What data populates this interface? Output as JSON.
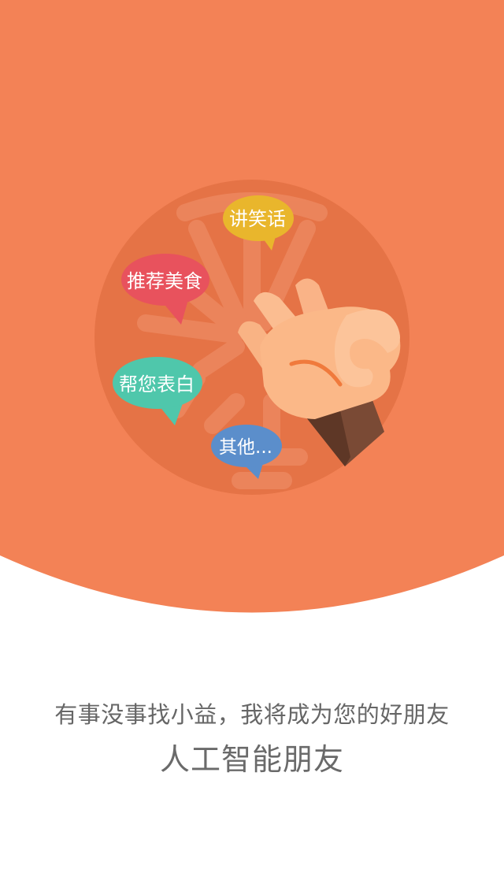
{
  "colors": {
    "accent": "#f38256",
    "circle": "#e57346",
    "bubble_joke": "#e9b62c",
    "bubble_food": "#e8525d",
    "bubble_confess": "#4fc7ab",
    "bubble_other": "#5b8ecb",
    "text": "#666666"
  },
  "illustration": {
    "bubbles": {
      "joke": "讲笑话",
      "food": "推荐美食",
      "confess": "帮您表白",
      "other": "其他..."
    },
    "hand_icon": "ok-hand-icon",
    "logo_watermark": "logo-watermark-icon"
  },
  "tagline": {
    "sub": "有事没事找小益，我将成为您的好朋友",
    "main": "人工智能朋友"
  }
}
